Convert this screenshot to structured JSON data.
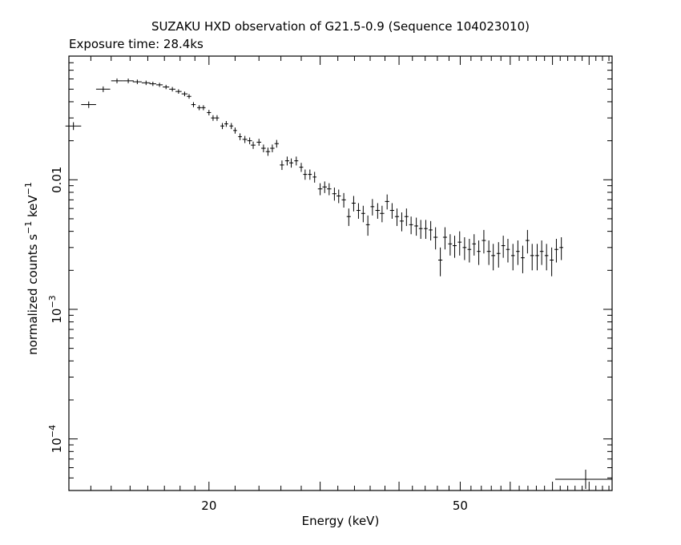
{
  "chart_data": {
    "type": "scatter",
    "title": "SUZAKU HXD observation of G21.5-0.9 (Sequence 104023010)",
    "subtitle": "Exposure time: 28.4ks",
    "xlabel": "Energy (keV)",
    "ylabel": {
      "base": "normalized counts s",
      "exp1": "−1",
      "mid": " keV",
      "exp2": "−1"
    },
    "xscale": "log",
    "yscale": "log",
    "xlim": [
      12.0,
      87.0
    ],
    "ylim": [
      4e-05,
      0.09
    ],
    "grid": false,
    "x_ticks": [
      {
        "value": 20,
        "label": "20"
      },
      {
        "value": 50,
        "label": "50"
      }
    ],
    "y_ticks": [
      {
        "value": 0.01,
        "label": "0.01"
      },
      {
        "value": 0.001,
        "label": "10",
        "exp": "−3"
      },
      {
        "value": 0.0001,
        "label": "10",
        "exp": "−4"
      }
    ],
    "series": [
      {
        "x": [
          12.2,
          12.9,
          13.6,
          14.3,
          14.9,
          15.4,
          15.9,
          16.3,
          16.7,
          17.1,
          17.5,
          17.9,
          18.3,
          18.6,
          18.9,
          19.3,
          19.6,
          20.0,
          20.3,
          20.6,
          21.0,
          21.3,
          21.7,
          22.0,
          22.4,
          22.8,
          23.2,
          23.5,
          24.0,
          24.4,
          24.8,
          25.2,
          25.6,
          26.1,
          26.6,
          27.0,
          27.5,
          28.0,
          28.4,
          28.9,
          29.4,
          30.0,
          30.5,
          31.0,
          31.6,
          32.1,
          32.7,
          33.3,
          33.9,
          34.5,
          35.1,
          35.7,
          36.3,
          37.0,
          37.6,
          38.3,
          39.0,
          39.7,
          40.4,
          41.1,
          41.8,
          42.6,
          43.3,
          44.1,
          44.9,
          45.7,
          46.5,
          47.3,
          48.2,
          49.0,
          49.9,
          50.8,
          51.7,
          52.6,
          53.5,
          54.5,
          55.5,
          56.4,
          57.5,
          58.5,
          59.5,
          60.6,
          61.7,
          62.8,
          63.9,
          65.0,
          66.2,
          67.3,
          68.5,
          69.8,
          71.0,
          72.3
        ],
        "y": [
          0.026,
          0.038,
          0.05,
          0.058,
          0.058,
          0.057,
          0.056,
          0.055,
          0.054,
          0.052,
          0.05,
          0.048,
          0.046,
          0.044,
          0.038,
          0.036,
          0.036,
          0.033,
          0.03,
          0.03,
          0.026,
          0.027,
          0.026,
          0.024,
          0.0215,
          0.0205,
          0.02,
          0.0185,
          0.0195,
          0.0175,
          0.0165,
          0.0175,
          0.019,
          0.013,
          0.014,
          0.0135,
          0.014,
          0.0125,
          0.011,
          0.011,
          0.0105,
          0.0085,
          0.0088,
          0.0085,
          0.0078,
          0.0075,
          0.007,
          0.0052,
          0.0066,
          0.0058,
          0.0055,
          0.0045,
          0.0062,
          0.0058,
          0.0055,
          0.0068,
          0.0058,
          0.0052,
          0.0048,
          0.0052,
          0.0045,
          0.0044,
          0.0042,
          0.0042,
          0.0041,
          0.0036,
          0.0024,
          0.0036,
          0.0032,
          0.0031,
          0.0033,
          0.003,
          0.0029,
          0.0032,
          0.0028,
          0.0034,
          0.0028,
          0.0026,
          0.0027,
          0.0031,
          0.0029,
          0.0026,
          0.0028,
          0.0025,
          0.0034,
          0.0026,
          0.0026,
          0.0028,
          0.0026,
          0.0024,
          0.0029,
          0.003
        ],
        "xerr": [
          0.35,
          0.35,
          0.35,
          0.3,
          0.3,
          0.25,
          0.25,
          0.2,
          0.2,
          0.2,
          0.2,
          0.2,
          0.2,
          0.15,
          0.15,
          0.15,
          0.15,
          0.15,
          0.15,
          0.15,
          0.15,
          0.15,
          0.15,
          0.15,
          0.15,
          0.2,
          0.2,
          0.2,
          0.2,
          0.2,
          0.2,
          0.2,
          0.2,
          0.2,
          0.2,
          0.2,
          0.2,
          0.2,
          0.2,
          0.2,
          0.2,
          0.25,
          0.25,
          0.25,
          0.25,
          0.25,
          0.25,
          0.25,
          0.25,
          0.25,
          0.25,
          0.25,
          0.25,
          0.3,
          0.3,
          0.3,
          0.3,
          0.3,
          0.3,
          0.3,
          0.3,
          0.3,
          0.3,
          0.3,
          0.3,
          0.35,
          0.35,
          0.35,
          0.35,
          0.35,
          0.35,
          0.35,
          0.35,
          0.35,
          0.35,
          0.4,
          0.4,
          0.4,
          0.4,
          0.4,
          0.4,
          0.4,
          0.4,
          0.45,
          0.45,
          0.45,
          0.45,
          0.45,
          0.45,
          0.5,
          0.5,
          0.5
        ],
        "yerr": [
          0.0018,
          0.0022,
          0.0025,
          0.0025,
          0.0024,
          0.0023,
          0.0022,
          0.0021,
          0.002,
          0.002,
          0.002,
          0.0019,
          0.0019,
          0.0018,
          0.0017,
          0.0016,
          0.0016,
          0.0016,
          0.0015,
          0.0015,
          0.0014,
          0.0014,
          0.0014,
          0.0013,
          0.0013,
          0.0013,
          0.0012,
          0.0012,
          0.0012,
          0.0012,
          0.0012,
          0.0012,
          0.0013,
          0.0011,
          0.0011,
          0.0011,
          0.0011,
          0.001,
          0.001,
          0.001,
          0.001,
          0.0009,
          0.0009,
          0.0009,
          0.0009,
          0.0009,
          0.0009,
          0.0008,
          0.0009,
          0.0008,
          0.0008,
          0.0008,
          0.0009,
          0.0008,
          0.0008,
          0.0009,
          0.0008,
          0.0008,
          0.0008,
          0.0008,
          0.0007,
          0.0007,
          0.0007,
          0.0007,
          0.0007,
          0.0007,
          0.0006,
          0.0007,
          0.0006,
          0.0006,
          0.0007,
          0.0006,
          0.0006,
          0.0006,
          0.0006,
          0.0007,
          0.0006,
          0.0006,
          0.0006,
          0.0006,
          0.0006,
          0.0006,
          0.0006,
          0.0006,
          0.0007,
          0.0006,
          0.0006,
          0.0006,
          0.0006,
          0.0006,
          0.0006,
          0.0006
        ]
      }
    ]
  }
}
